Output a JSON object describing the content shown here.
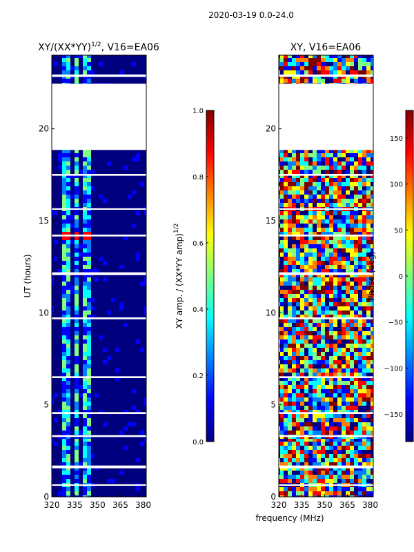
{
  "figure": {
    "suptitle": "2020-03-19 0.0-24.0",
    "shared_xlabel": "frequency (MHz)",
    "colormap": [
      "#00007f",
      "#0000ff",
      "#0080ff",
      "#00ffff",
      "#80ff80",
      "#ffff00",
      "#ff8000",
      "#ff0000",
      "#7f0000"
    ],
    "missing_color": "#ffffff"
  },
  "chart_data": [
    {
      "type": "heatmap",
      "title": "XY/(XX*YY)",
      "title_sup": "1/2",
      "title_suffix": ", V16=EA06",
      "xlabel": "frequency (MHz)",
      "ylabel": "UT (hours)",
      "xlim": [
        320,
        382
      ],
      "ylim": [
        0,
        24
      ],
      "xticks": [
        320,
        335,
        350,
        365,
        380
      ],
      "yticks": [
        0,
        5,
        10,
        15,
        20
      ],
      "data_gaps_hours": [
        [
          18.85,
          22.45
        ],
        [
          22.82,
          22.95
        ],
        [
          17.45,
          17.55
        ],
        [
          15.6,
          15.68
        ],
        [
          14.15,
          14.25
        ],
        [
          12.05,
          12.2
        ],
        [
          9.65,
          9.75
        ],
        [
          6.45,
          6.55
        ],
        [
          4.5,
          4.6
        ],
        [
          3.25,
          3.35
        ],
        [
          1.55,
          1.7
        ],
        [
          0.6,
          0.68
        ]
      ],
      "colorbar": {
        "label": "XY amp. / (XX*YY amp)",
        "label_sup": "1/2",
        "range": [
          0.0,
          1.0
        ],
        "ticks": [
          "0.0",
          "0.2",
          "0.4",
          "0.6",
          "0.8",
          "1.0"
        ]
      }
    },
    {
      "type": "heatmap",
      "title": "XY, V16=EA06",
      "xlabel": "frequency (MHz)",
      "ylabel": "",
      "xlim": [
        320,
        382
      ],
      "ylim": [
        0,
        24
      ],
      "xticks": [
        320,
        335,
        350,
        365,
        380
      ],
      "yticks": [
        0,
        5,
        10,
        15,
        20
      ],
      "data_gaps_hours": [
        [
          18.85,
          22.45
        ],
        [
          22.82,
          22.95
        ],
        [
          17.45,
          17.55
        ],
        [
          15.6,
          15.68
        ],
        [
          14.15,
          14.25
        ],
        [
          12.05,
          12.2
        ],
        [
          9.65,
          9.75
        ],
        [
          6.45,
          6.55
        ],
        [
          4.5,
          4.6
        ],
        [
          3.25,
          3.35
        ],
        [
          1.55,
          1.7
        ],
        [
          0.6,
          0.68
        ]
      ],
      "colorbar": {
        "label": "Phase (deg)",
        "range": [
          -180,
          180
        ],
        "ticks": [
          "-150",
          "-100",
          "-50",
          "0",
          "50",
          "100",
          "150"
        ],
        "tick_values": [
          -150,
          -100,
          -50,
          0,
          50,
          100,
          150
        ]
      }
    }
  ]
}
